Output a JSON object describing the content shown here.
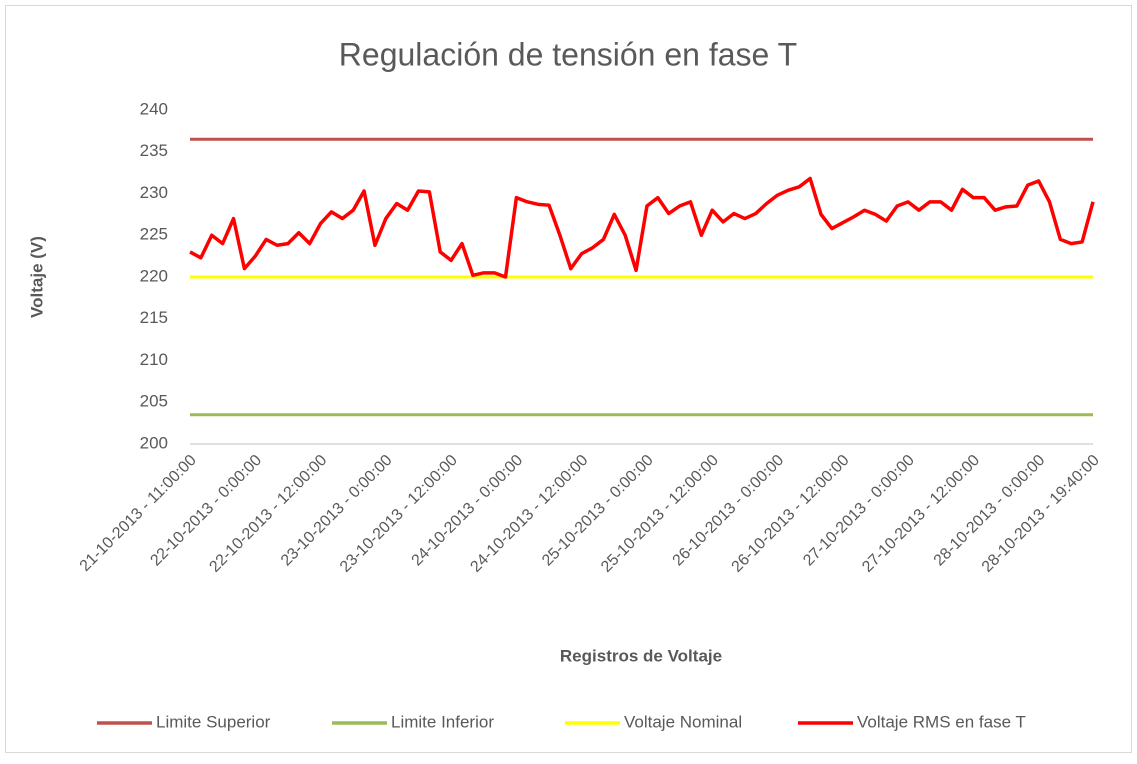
{
  "chart_data": {
    "type": "line",
    "title": "Regulación de tensión en fase T",
    "x_label": "Registros de Voltaje",
    "y_label": "Voltaje (V)",
    "categories": [
      "21-10-2013 - 11:00:00",
      null,
      null,
      null,
      null,
      null,
      "22-10-2013 - 0:00:00",
      null,
      null,
      null,
      null,
      null,
      "22-10-2013 - 12:00:00",
      null,
      null,
      null,
      null,
      null,
      "23-10-2013 - 0:00:00",
      null,
      null,
      null,
      null,
      null,
      "23-10-2013 - 12:00:00",
      null,
      null,
      null,
      null,
      null,
      "24-10-2013 - 0:00:00",
      null,
      null,
      null,
      null,
      null,
      "24-10-2013 - 12:00:00",
      null,
      null,
      null,
      null,
      null,
      "25-10-2013 - 0:00:00",
      null,
      null,
      null,
      null,
      null,
      "25-10-2013 - 12:00:00",
      null,
      null,
      null,
      null,
      null,
      "26-10-2013 - 0:00:00",
      null,
      null,
      null,
      null,
      null,
      "26-10-2013 - 12:00:00",
      null,
      null,
      null,
      null,
      null,
      "27-10-2013 - 0:00:00",
      null,
      null,
      null,
      null,
      null,
      "27-10-2013 - 12:00:00",
      null,
      null,
      null,
      null,
      null,
      "28-10-2013 - 0:00:00",
      null,
      null,
      null,
      null,
      "28-10-2013 - 19:40:00"
    ],
    "series": [
      {
        "name": "Limite Superior",
        "color": "#c0504d",
        "value": 236.5
      },
      {
        "name": "Limite Inferior",
        "color": "#9bbb59",
        "value": 203.5
      },
      {
        "name": "Voltaje Nominal",
        "color": "#ffff00",
        "value": 220
      },
      {
        "name": "Voltaje RMS en fase T",
        "color": "#ff0000",
        "values": [
          223,
          222.3,
          225,
          224,
          227,
          221,
          222.5,
          224.5,
          223.8,
          224,
          225.3,
          224,
          226.4,
          227.8,
          227,
          228,
          230.3,
          223.8,
          227,
          228.8,
          228,
          230.3,
          230.2,
          223,
          222,
          224,
          220.2,
          220.5,
          220.5,
          220,
          229.5,
          229,
          228.7,
          228.6,
          225,
          221,
          222.8,
          223.5,
          224.5,
          227.5,
          225,
          220.8,
          228.5,
          229.5,
          227.6,
          228.5,
          229,
          225,
          228,
          226.6,
          227.6,
          227,
          227.6,
          228.8,
          229.8,
          230.4,
          230.8,
          231.8,
          227.5,
          225.8,
          226.5,
          227.2,
          228,
          227.5,
          226.7,
          228.5,
          229,
          228,
          229,
          229,
          228,
          230.5,
          229.5,
          229.5,
          228,
          228.4,
          228.5,
          231,
          231.5,
          229,
          224.5,
          224,
          224.2,
          229
        ]
      }
    ],
    "ylim": [
      200,
      240
    ],
    "yticks": [
      200,
      205,
      210,
      215,
      220,
      225,
      230,
      235,
      240
    ],
    "grid": false,
    "legend": "bottom"
  }
}
